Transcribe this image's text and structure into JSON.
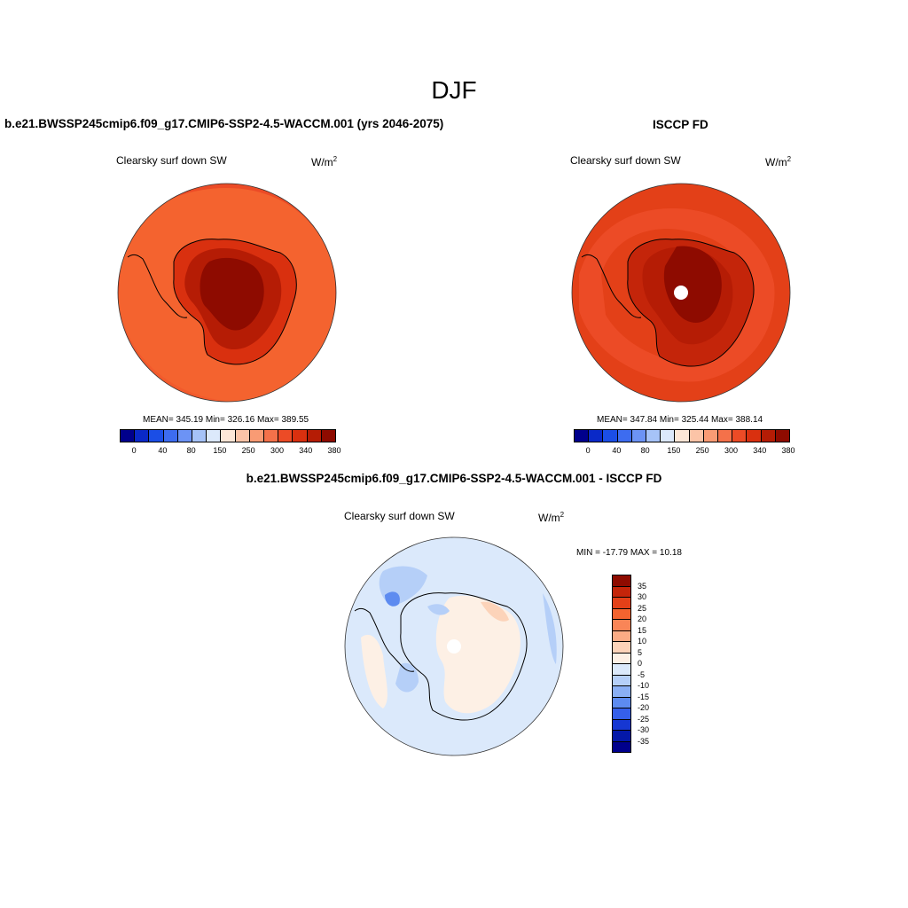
{
  "figure": {
    "title": "DJF",
    "variable": "Clearsky surf down SW",
    "units_base": "W/m",
    "units_exp": "2"
  },
  "panels": {
    "model": {
      "title": "b.e21.BWSSP245cmip6.f09_g17.CMIP6-SSP2-4.5-WACCM.001 (yrs 2046-2075)",
      "stats": "MEAN= 345.19  Min= 326.16  Max= 389.55"
    },
    "obs": {
      "title": "ISCCP FD",
      "stats": "MEAN= 347.84  Min= 325.44  Max= 388.14"
    },
    "diff": {
      "title": "b.e21.BWSSP245cmip6.f09_g17.CMIP6-SSP2-4.5-WACCM.001 - ISCCP FD",
      "stats": "MIN = -17.79 MAX =  10.18"
    }
  },
  "colorbars": {
    "abs": {
      "colors": [
        "#00008c",
        "#0a29c8",
        "#1b4ee6",
        "#3d6cf0",
        "#6c93f5",
        "#a6c3f8",
        "#dce9fb",
        "#fde7d7",
        "#fcc4a7",
        "#f99b74",
        "#f4714a",
        "#ec4b26",
        "#d9300f",
        "#b51c05",
        "#8e0b00"
      ],
      "tick_labels": [
        "0",
        "40",
        "80",
        "150",
        "250",
        "300",
        "340",
        "380"
      ]
    },
    "diff": {
      "colors": [
        "#8e0b00",
        "#c4250a",
        "#e34018",
        "#f4632f",
        "#f98557",
        "#fbab85",
        "#fcd3b9",
        "#fdf0e5",
        "#dbe9fb",
        "#b5cff8",
        "#8aaff4",
        "#5d8bf0",
        "#355fea",
        "#1637d2",
        "#0418a8",
        "#00008c"
      ],
      "tick_labels": [
        "35",
        "30",
        "25",
        "20",
        "15",
        "10",
        "5",
        "0",
        "-5",
        "-10",
        "-15",
        "-20",
        "-25",
        "-30",
        "-35"
      ]
    }
  }
}
